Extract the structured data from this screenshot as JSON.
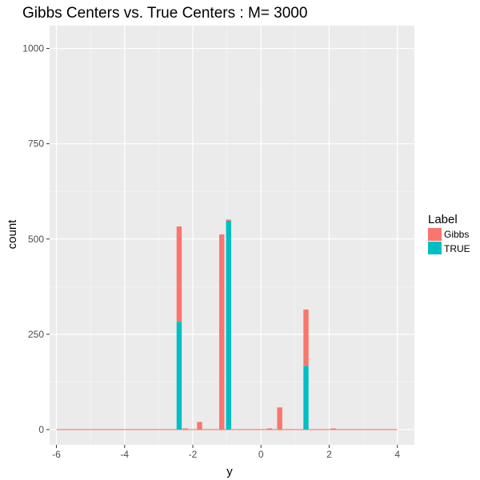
{
  "chart_data": {
    "type": "bar",
    "title": "Gibbs Centers vs. True Centers : M= 3000",
    "xlabel": "y",
    "ylabel": "count",
    "xlim": [
      -6.2,
      4.5
    ],
    "ylim": [
      -40,
      1060
    ],
    "x_ticks": [
      -6,
      -4,
      -2,
      0,
      2,
      4
    ],
    "y_ticks": [
      0,
      250,
      500,
      750,
      1000
    ],
    "stacked": true,
    "bin_width": 0.15,
    "legend": {
      "title": "Label",
      "position": "right"
    },
    "grid": true,
    "series": [
      {
        "name": "Gibbs",
        "color": "#F8766D",
        "points": [
          {
            "x": -2.4,
            "y": 250
          },
          {
            "x": -2.22,
            "y": 3
          },
          {
            "x": -1.8,
            "y": 20
          },
          {
            "x": -1.15,
            "y": 512
          },
          {
            "x": -0.95,
            "y": 3
          },
          {
            "x": 0.25,
            "y": 3
          },
          {
            "x": 0.55,
            "y": 58
          },
          {
            "x": 1.32,
            "y": 148
          },
          {
            "x": 2.12,
            "y": 3
          }
        ]
      },
      {
        "name": "TRUE",
        "color": "#00BFC4",
        "points": [
          {
            "x": -2.4,
            "y": 283
          },
          {
            "x": -0.95,
            "y": 548
          },
          {
            "x": 1.32,
            "y": 167
          }
        ]
      }
    ],
    "baseline": {
      "from": -6,
      "to": 4,
      "y": 0
    }
  }
}
